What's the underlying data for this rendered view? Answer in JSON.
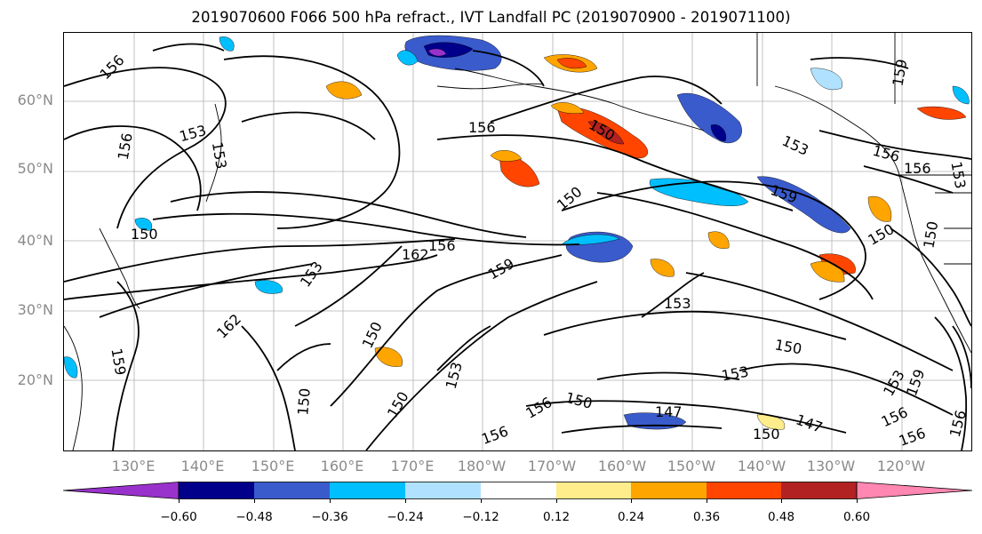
{
  "title": "2019070600 F066 500 hPa refract., IVT Landfall PC (2019070900 - 2019071100)",
  "lat_labels": [
    "60°N",
    "50°N",
    "40°N",
    "30°N",
    "20°N"
  ],
  "lon_labels": [
    "130°E",
    "140°E",
    "150°E",
    "160°E",
    "170°E",
    "180°W",
    "170°W",
    "160°W",
    "150°W",
    "140°W",
    "130°W",
    "120°W"
  ],
  "contour_labels": [
    "156",
    "153",
    "153",
    "156",
    "156",
    "150",
    "162",
    "159",
    "153",
    "156",
    "153",
    "150",
    "162",
    "159",
    "150",
    "150",
    "150",
    "153",
    "156",
    "150",
    "147",
    "150",
    "156",
    "147",
    "150",
    "153",
    "153",
    "156",
    "159",
    "156",
    "156",
    "153",
    "150",
    "159",
    "159",
    "156",
    "150",
    "153",
    "156",
    "150"
  ],
  "colorbar": {
    "tick_labels": [
      "−0.60",
      "−0.48",
      "−0.36",
      "−0.24",
      "−0.12",
      "0.12",
      "0.24",
      "0.36",
      "0.48",
      "0.60"
    ],
    "colors": [
      "#9932cc",
      "#00008b",
      "#3a5bcc",
      "#00bfff",
      "#b0e2ff",
      "#ffffff",
      "#ffec8b",
      "#ffa500",
      "#ff4500",
      "#b22222",
      "#ff87b1"
    ]
  }
}
